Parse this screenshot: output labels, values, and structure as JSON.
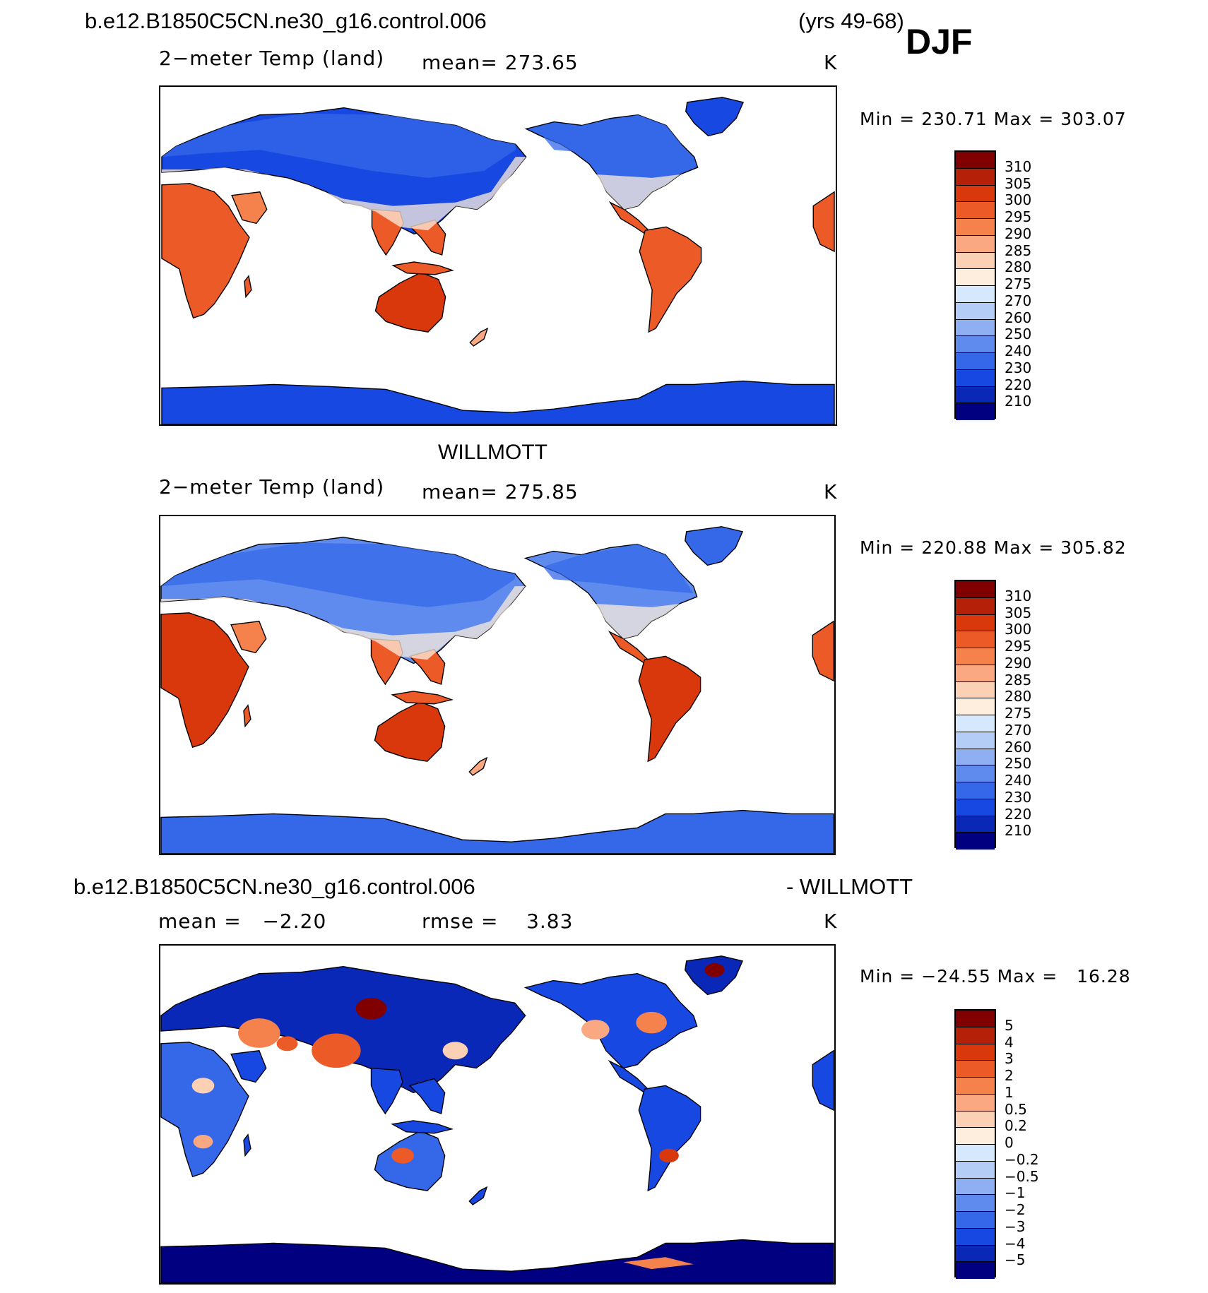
{
  "header": {
    "case": "b.e12.B1850C5CN.ne30_g16.control.006",
    "years": "(yrs 49-68)",
    "season": "DJF"
  },
  "panels": [
    {
      "variable": "2−meter Temp (land)",
      "mean": "mean= 273.65",
      "units": "K",
      "minmax": "Min = 230.71 Max = 303.07",
      "colorbar_labels": [
        "310",
        "305",
        "300",
        "295",
        "290",
        "285",
        "280",
        "275",
        "270",
        "260",
        "250",
        "240",
        "230",
        "220",
        "210"
      ]
    },
    {
      "title": "WILLMOTT",
      "variable": "2−meter Temp (land)",
      "mean": "mean= 275.85",
      "units": "K",
      "minmax": "Min = 220.88 Max = 305.82",
      "colorbar_labels": [
        "310",
        "305",
        "300",
        "295",
        "290",
        "285",
        "280",
        "275",
        "270",
        "260",
        "250",
        "240",
        "230",
        "220",
        "210"
      ]
    },
    {
      "title_left": "b.e12.B1850C5CN.ne30_g16.control.006",
      "title_right": "- WILLMOTT",
      "mean": "mean =   −2.20",
      "rmse": "rmse =    3.83",
      "units": "K",
      "minmax": "Min = −24.55 Max =   16.28",
      "colorbar_labels": [
        "5",
        "4",
        "3",
        "2",
        "1",
        "0.5",
        "0.2",
        "0",
        "−0.2",
        "−0.5",
        "−1",
        "−2",
        "−3",
        "−4",
        "−5"
      ]
    }
  ],
  "colors": {
    "temp_scale": [
      "#800000",
      "#b42008",
      "#d8380c",
      "#ec5a28",
      "#f5824c",
      "#faa882",
      "#fcd0b4",
      "#fdeede",
      "#d6e8fb",
      "#b4cdf7",
      "#8eb0f2",
      "#5e8bed",
      "#3468e8",
      "#1848e2",
      "#0a28b8",
      "#000080"
    ]
  }
}
